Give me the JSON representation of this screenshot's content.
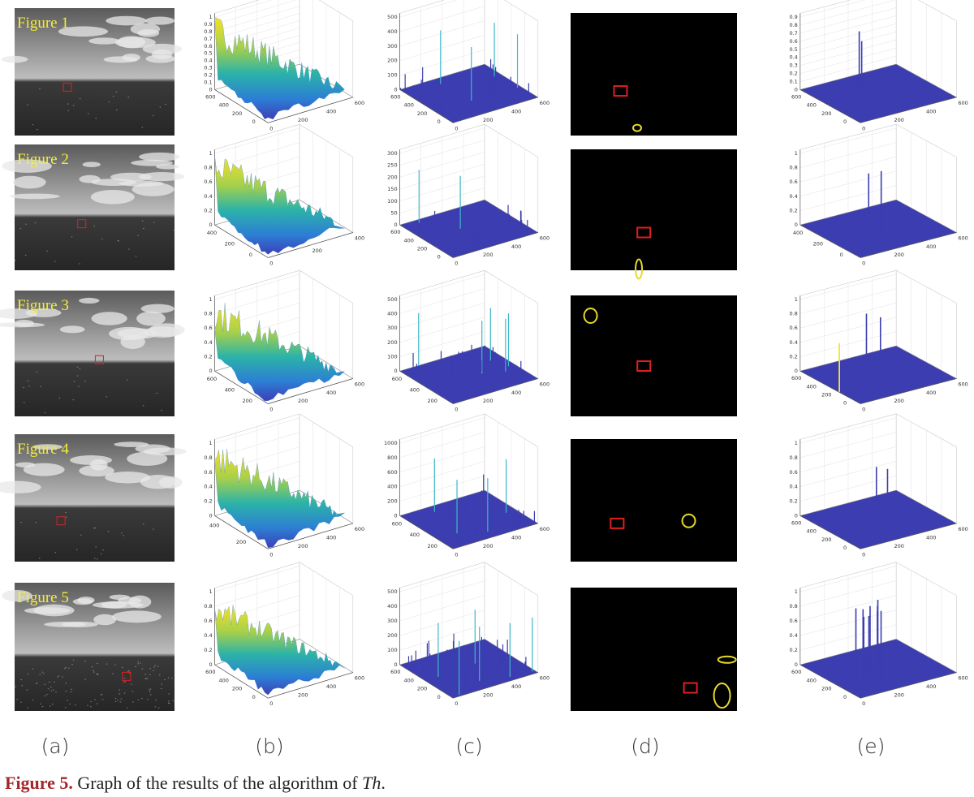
{
  "rows": [
    {
      "label": "Figure 1",
      "b": {
        "zticks": [
          0,
          0.1,
          0.2,
          0.3,
          0.4,
          0.5,
          0.6,
          0.7,
          0.8,
          0.9,
          1
        ],
        "left": [
          600,
          400,
          200,
          0
        ],
        "right": [
          0,
          200,
          400,
          600
        ]
      },
      "c": {
        "zticks": [
          0,
          100,
          200,
          300,
          400,
          500
        ],
        "left": [
          600,
          400,
          200,
          0
        ],
        "right": [
          0,
          200,
          400,
          600
        ]
      },
      "e": {
        "zticks": [
          0,
          0.1,
          0.2,
          0.3,
          0.4,
          0.5,
          0.6,
          0.7,
          0.8,
          0.9
        ],
        "left": [
          600,
          400,
          200,
          0
        ],
        "right": [
          0,
          200,
          400,
          600
        ]
      }
    },
    {
      "label": "Figure 2",
      "b": {
        "zticks": [
          0,
          0.2,
          0.4,
          0.6,
          0.8,
          1
        ],
        "left": [
          400,
          200,
          0
        ],
        "right": [
          0,
          200,
          400
        ]
      },
      "c": {
        "zticks": [
          0,
          50,
          100,
          150,
          200,
          250,
          300
        ],
        "left": [
          600,
          400,
          200,
          0
        ],
        "right": [
          0,
          200,
          400,
          600
        ]
      },
      "e": {
        "zticks": [
          0,
          0.2,
          0.4,
          0.6,
          0.8,
          1
        ],
        "left": [
          400,
          200,
          0
        ],
        "right": [
          0,
          200,
          400,
          600
        ]
      }
    },
    {
      "label": "Figure 3",
      "b": {
        "zticks": [
          0,
          0.2,
          0.4,
          0.6,
          0.8,
          1
        ],
        "left": [
          600,
          400,
          200
        ],
        "right": [
          0,
          200,
          400,
          600
        ]
      },
      "c": {
        "zticks": [
          0,
          100,
          200,
          300,
          400,
          500
        ],
        "left": [
          600,
          400,
          200
        ],
        "right": [
          0,
          200,
          400,
          600
        ]
      },
      "e": {
        "zticks": [
          0,
          0.2,
          0.4,
          0.6,
          0.8,
          1
        ],
        "left": [
          600,
          400,
          200,
          0
        ],
        "right": [
          0,
          200,
          400,
          600
        ]
      }
    },
    {
      "label": "Figure 4",
      "b": {
        "zticks": [
          0,
          0.2,
          0.4,
          0.6,
          0.8,
          1
        ],
        "left": [
          400,
          200
        ],
        "right": [
          0,
          200,
          400,
          600
        ]
      },
      "c": {
        "zticks": [
          0,
          200,
          400,
          600,
          800,
          1000
        ],
        "left": [
          600,
          400,
          200
        ],
        "right": [
          0,
          200,
          400,
          600
        ]
      },
      "e": {
        "zticks": [
          0,
          0.2,
          0.4,
          0.6,
          0.8,
          1
        ],
        "left": [
          600,
          400,
          200,
          0
        ],
        "right": [
          0,
          200,
          400,
          600
        ]
      }
    },
    {
      "label": "Figure 5",
      "b": {
        "zticks": [
          0,
          0.2,
          0.4,
          0.6,
          0.8,
          1
        ],
        "left": [
          600,
          400,
          200,
          0
        ],
        "right": [
          0,
          200,
          400,
          600
        ]
      },
      "c": {
        "zticks": [
          0,
          100,
          200,
          300,
          400,
          500
        ],
        "left": [
          600,
          400,
          200,
          0
        ],
        "right": [
          0,
          200,
          400,
          600
        ]
      },
      "e": {
        "zticks": [
          0,
          0.2,
          0.4,
          0.6,
          0.8,
          1
        ],
        "left": [
          600,
          400,
          200,
          0
        ],
        "right": [
          0,
          200,
          400,
          600
        ]
      }
    }
  ],
  "columns": [
    "(a)",
    "(b)",
    "(c)",
    "(d)",
    "(e)"
  ],
  "caption": {
    "label": "Figure 5.",
    "text": "Graph of the results of the algorithm of ",
    "italic": "Th",
    "end": "."
  }
}
